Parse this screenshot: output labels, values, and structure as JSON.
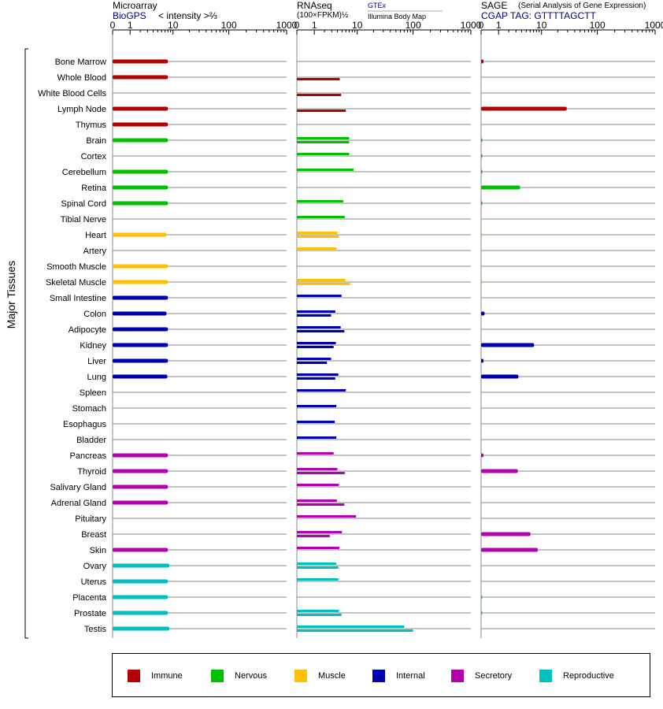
{
  "panels": [
    {
      "title": "Microarray",
      "subtitle_a": "BioGPS",
      "subtitle_b": "< intensity >⅔",
      "ticks": [
        "0",
        "1",
        "10",
        "100",
        "1000"
      ]
    },
    {
      "title": "RNAseq",
      "subtitle_a": "(100×FPKM)½",
      "source_a": "GTEx",
      "source_b": "Illumina Body Map",
      "ticks": [
        "0",
        "1",
        "10",
        "100",
        "1000"
      ]
    },
    {
      "title": "SAGE",
      "title_note": "(Serial Analysis of Gene Expression)",
      "subtitle_a": "CGAP TAG: GTTTTAGCTT",
      "ticks": [
        "0",
        "1",
        "10",
        "100",
        "1000"
      ]
    }
  ],
  "yaxis_title": "Major Tissues",
  "legend": [
    {
      "label": "Immune",
      "color": "#b30000"
    },
    {
      "label": "Nervous",
      "color": "#00c000"
    },
    {
      "label": "Muscle",
      "color": "#ffc000"
    },
    {
      "label": "Internal",
      "color": "#0000b3"
    },
    {
      "label": "Secretory",
      "color": "#b300b3"
    },
    {
      "label": "Reproductive",
      "color": "#00bfbf"
    }
  ],
  "chart_data": {
    "type": "bar",
    "x_scale": "log1p",
    "xlim": [
      0,
      1000
    ],
    "colors": {
      "Immune": "#b30000",
      "Nervous": "#00c000",
      "Muscle": "#ffc000",
      "Internal": "#0000b3",
      "Secretory": "#b300b3",
      "Reproductive": "#00bfbf"
    },
    "tissues": [
      {
        "name": "Bone Marrow",
        "group": "Immune",
        "microarray": 8,
        "rnaseq": [],
        "sage": 0.1
      },
      {
        "name": "Whole Blood",
        "group": "Immune",
        "microarray": 8,
        "rnaseq": [
          null,
          4.5
        ],
        "sage": null
      },
      {
        "name": "White Blood Cells",
        "group": "Immune",
        "microarray": null,
        "rnaseq": [
          null,
          4.8
        ],
        "sage": null
      },
      {
        "name": "Lymph Node",
        "group": "Immune",
        "microarray": 8,
        "rnaseq": [
          null,
          6
        ],
        "sage": 29
      },
      {
        "name": "Thymus",
        "group": "Immune",
        "microarray": 8,
        "rnaseq": [],
        "sage": null
      },
      {
        "name": "Brain",
        "group": "Nervous",
        "microarray": 8,
        "rnaseq": [
          7,
          7
        ],
        "sage": 0.03
      },
      {
        "name": "Cortex",
        "group": "Nervous",
        "microarray": null,
        "rnaseq": [
          7
        ],
        "sage": 0.03
      },
      {
        "name": "Cerebellum",
        "group": "Nervous",
        "microarray": 8,
        "rnaseq": [
          8.5
        ],
        "sage": 0.03
      },
      {
        "name": "Retina",
        "group": "Nervous",
        "microarray": 8,
        "rnaseq": [],
        "sage": 3.7
      },
      {
        "name": "Spinal Cord",
        "group": "Nervous",
        "microarray": 8,
        "rnaseq": [
          5.3
        ],
        "sage": 0.03
      },
      {
        "name": "Tibial Nerve",
        "group": "Nervous",
        "microarray": null,
        "rnaseq": [
          5.7
        ],
        "sage": null
      },
      {
        "name": "Heart",
        "group": "Muscle",
        "microarray": 7.5,
        "rnaseq": [
          4,
          4.3
        ],
        "sage": 0.03
      },
      {
        "name": "Artery",
        "group": "Muscle",
        "microarray": null,
        "rnaseq": [
          3.8
        ],
        "sage": null
      },
      {
        "name": "Smooth Muscle",
        "group": "Muscle",
        "microarray": 8,
        "rnaseq": [],
        "sage": null
      },
      {
        "name": "Skeletal Muscle",
        "group": "Muscle",
        "microarray": 8,
        "rnaseq": [
          5.9,
          7.3
        ],
        "sage": 0.03
      },
      {
        "name": "Small Intestine",
        "group": "Internal",
        "microarray": 8,
        "rnaseq": [
          4.9
        ],
        "sage": null
      },
      {
        "name": "Colon",
        "group": "Internal",
        "microarray": 7.5,
        "rnaseq": [
          3.6,
          2.9
        ],
        "sage": 0.15
      },
      {
        "name": "Adipocyte",
        "group": "Internal",
        "microarray": 8,
        "rnaseq": [
          4.7,
          5.6
        ],
        "sage": null
      },
      {
        "name": "Kidney",
        "group": "Internal",
        "microarray": 8,
        "rnaseq": [
          3.7,
          3.3
        ],
        "sage": 7.2
      },
      {
        "name": "Liver",
        "group": "Internal",
        "microarray": 8,
        "rnaseq": [
          2.9,
          2.3
        ],
        "sage": 0.1
      },
      {
        "name": "Lung",
        "group": "Internal",
        "microarray": 7.8,
        "rnaseq": [
          4.2,
          3.6
        ],
        "sage": 3.4
      },
      {
        "name": "Spleen",
        "group": "Internal",
        "microarray": null,
        "rnaseq": [
          6
        ],
        "sage": null
      },
      {
        "name": "Stomach",
        "group": "Internal",
        "microarray": null,
        "rnaseq": [
          3.8
        ],
        "sage": null
      },
      {
        "name": "Esophagus",
        "group": "Internal",
        "microarray": null,
        "rnaseq": [
          3.5
        ],
        "sage": null
      },
      {
        "name": "Bladder",
        "group": "Internal",
        "microarray": null,
        "rnaseq": [
          3.8
        ],
        "sage": null
      },
      {
        "name": "Pancreas",
        "group": "Secretory",
        "microarray": 8,
        "rnaseq": [
          3.3
        ],
        "sage": 0.1
      },
      {
        "name": "Thyroid",
        "group": "Secretory",
        "microarray": 8,
        "rnaseq": [
          4,
          5.7
        ],
        "sage": 3.3
      },
      {
        "name": "Salivary Gland",
        "group": "Secretory",
        "microarray": 8,
        "rnaseq": [
          4.3
        ],
        "sage": null
      },
      {
        "name": "Adrenal Gland",
        "group": "Secretory",
        "microarray": 8,
        "rnaseq": [
          3.9,
          5.6
        ],
        "sage": null
      },
      {
        "name": "Pituitary",
        "group": "Secretory",
        "microarray": null,
        "rnaseq": [
          9.5
        ],
        "sage": null
      },
      {
        "name": "Breast",
        "group": "Secretory",
        "microarray": null,
        "rnaseq": [
          5,
          2.7
        ],
        "sage": 6.1
      },
      {
        "name": "Skin",
        "group": "Secretory",
        "microarray": 8,
        "rnaseq": [
          4.4
        ],
        "sage": 8.5
      },
      {
        "name": "Ovary",
        "group": "Reproductive",
        "microarray": 8.5,
        "rnaseq": [
          3.8,
          4.2
        ],
        "sage": null
      },
      {
        "name": "Uterus",
        "group": "Reproductive",
        "microarray": 8,
        "rnaseq": [
          4.2
        ],
        "sage": null
      },
      {
        "name": "Placenta",
        "group": "Reproductive",
        "microarray": 8,
        "rnaseq": [],
        "sage": 0.03
      },
      {
        "name": "Prostate",
        "group": "Reproductive",
        "microarray": 8,
        "rnaseq": [
          4.3,
          4.9
        ],
        "sage": 0.03
      },
      {
        "name": "Testis",
        "group": "Reproductive",
        "microarray": 8.5,
        "rnaseq": [
          70,
          100
        ],
        "sage": null
      }
    ]
  }
}
